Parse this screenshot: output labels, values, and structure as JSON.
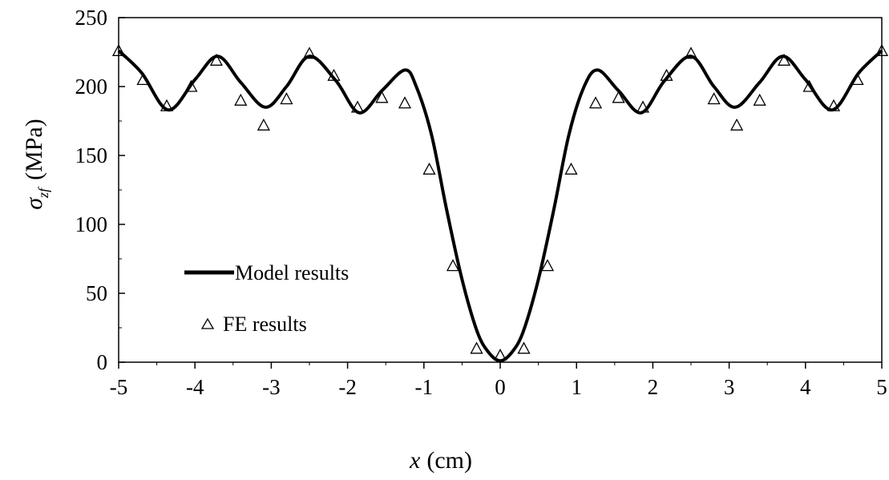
{
  "chart_data": {
    "type": "line",
    "title": "",
    "xlabel": {
      "var": "x",
      "unit": "(cm)"
    },
    "ylabel": {
      "var": "σ",
      "sub": "zf",
      "unit": "(MPa)"
    },
    "xlim": [
      -5,
      5
    ],
    "ylim": [
      0,
      250
    ],
    "xticks": [
      -5,
      -4,
      -3,
      -2,
      -1,
      0,
      1,
      2,
      3,
      4,
      5
    ],
    "xtick_labels": [
      "-5",
      "-4",
      "-3",
      "-2",
      "-1",
      "0",
      "1",
      "2",
      "3",
      "4",
      "5"
    ],
    "yticks": [
      0,
      50,
      100,
      150,
      200,
      250
    ],
    "ytick_labels": [
      "0",
      "50",
      "100",
      "150",
      "200",
      "250"
    ],
    "grid": false,
    "legend_position": "lower-left",
    "series": [
      {
        "name": "Model results",
        "style": "line",
        "color": "#000000",
        "x": [
          -5.0,
          -4.7,
          -4.35,
          -4.0,
          -3.7,
          -3.4,
          -3.08,
          -2.8,
          -2.5,
          -2.15,
          -1.85,
          -1.55,
          -1.25,
          -1.1,
          -0.9,
          -0.7,
          -0.5,
          -0.3,
          -0.15,
          0.0,
          0.15,
          0.3,
          0.5,
          0.7,
          0.9,
          1.1,
          1.28,
          1.55,
          1.85,
          2.15,
          2.5,
          2.8,
          3.08,
          3.4,
          3.7,
          4.0,
          4.35,
          4.7,
          5.0
        ],
        "y": [
          226,
          210,
          183,
          205,
          222,
          203,
          185,
          200,
          222,
          204,
          181,
          197,
          212,
          200,
          165,
          110,
          60,
          22,
          7,
          1,
          7,
          22,
          60,
          110,
          165,
          200,
          212,
          197,
          181,
          204,
          222,
          200,
          185,
          203,
          222,
          205,
          183,
          210,
          226
        ]
      },
      {
        "name": "FE results",
        "style": "triangle-markers",
        "color": "#000000",
        "x": [
          -5.0,
          -4.68,
          -4.37,
          -4.05,
          -3.72,
          -3.4,
          -3.1,
          -2.8,
          -2.5,
          -2.18,
          -1.87,
          -1.55,
          -1.25,
          -0.93,
          -0.62,
          -0.31,
          0.0,
          0.31,
          0.62,
          0.93,
          1.25,
          1.55,
          1.87,
          2.18,
          2.5,
          2.8,
          3.1,
          3.4,
          3.72,
          4.05,
          4.37,
          4.68,
          5.0
        ],
        "y": [
          226,
          205,
          186,
          200,
          219,
          190,
          172,
          191,
          224,
          208,
          185,
          192,
          188,
          140,
          70,
          10,
          5,
          10,
          70,
          140,
          188,
          192,
          185,
          208,
          224,
          191,
          172,
          190,
          219,
          200,
          186,
          205,
          226
        ]
      }
    ]
  }
}
